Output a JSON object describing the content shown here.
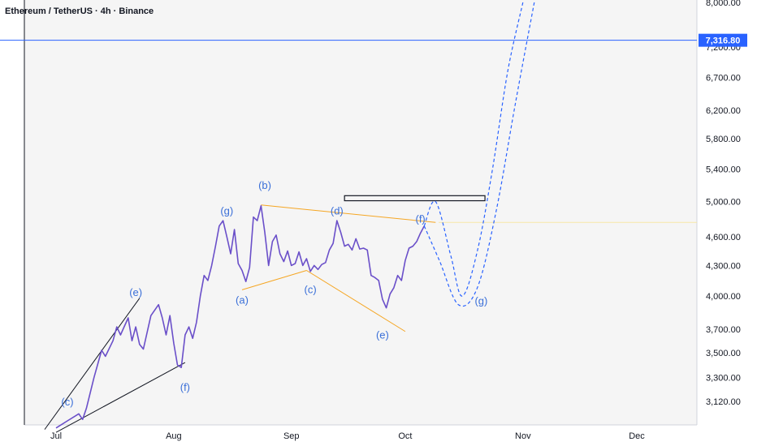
{
  "chart_data": {
    "type": "line",
    "title": "Ethereum / TetherUS · 4h · Binance",
    "xlabel": "",
    "ylabel": "",
    "x_ticks": [
      "Jul",
      "Aug",
      "Sep",
      "Oct",
      "Nov",
      "Dec"
    ],
    "y_ticks": [
      "3,120.00",
      "3,300.00",
      "3,500.00",
      "3,700.00",
      "4,000.00",
      "4,300.00",
      "4,600.00",
      "5,000.00",
      "5,400.00",
      "5,800.00",
      "6,200.00",
      "6,700.00",
      "7,200.00",
      "8,000.00"
    ],
    "y_tick_values": [
      3120,
      3300,
      3500,
      3700,
      4000,
      4300,
      4600,
      5000,
      5400,
      5800,
      6200,
      6700,
      7200,
      8000
    ],
    "ylim": [
      2900,
      8000
    ],
    "y_scale": "log",
    "grid": false,
    "price_line": {
      "value": 7316.8,
      "label": "7,316.80",
      "color": "#2962ff"
    },
    "series": [
      {
        "line_color": "#6a4fc9",
        "points": [
          [
            "2025-07-01",
            2930
          ],
          [
            "2025-07-04",
            2980
          ],
          [
            "2025-07-07",
            3030
          ],
          [
            "2025-07-08",
            2990
          ],
          [
            "2025-07-09",
            3070
          ],
          [
            "2025-07-11",
            3300
          ],
          [
            "2025-07-13",
            3520
          ],
          [
            "2025-07-14",
            3470
          ],
          [
            "2025-07-16",
            3600
          ],
          [
            "2025-07-17",
            3720
          ],
          [
            "2025-07-18",
            3650
          ],
          [
            "2025-07-20",
            3800
          ],
          [
            "2025-07-21",
            3600
          ],
          [
            "2025-07-22",
            3720
          ],
          [
            "2025-07-23",
            3570
          ],
          [
            "2025-07-24",
            3530
          ],
          [
            "2025-07-26",
            3820
          ],
          [
            "2025-07-28",
            3920
          ],
          [
            "2025-07-29",
            3800
          ],
          [
            "2025-07-30",
            3650
          ],
          [
            "2025-07-31",
            3820
          ],
          [
            "2025-08-01",
            3580
          ],
          [
            "2025-08-02",
            3400
          ],
          [
            "2025-08-03",
            3380
          ],
          [
            "2025-08-04",
            3650
          ],
          [
            "2025-08-05",
            3720
          ],
          [
            "2025-08-06",
            3620
          ],
          [
            "2025-08-07",
            3760
          ],
          [
            "2025-08-08",
            4000
          ],
          [
            "2025-08-09",
            4200
          ],
          [
            "2025-08-10",
            4150
          ],
          [
            "2025-08-11",
            4300
          ],
          [
            "2025-08-12",
            4500
          ],
          [
            "2025-08-13",
            4720
          ],
          [
            "2025-08-14",
            4780
          ],
          [
            "2025-08-15",
            4600
          ],
          [
            "2025-08-16",
            4420
          ],
          [
            "2025-08-17",
            4680
          ],
          [
            "2025-08-18",
            4320
          ],
          [
            "2025-08-19",
            4250
          ],
          [
            "2025-08-20",
            4140
          ],
          [
            "2025-08-21",
            4280
          ],
          [
            "2025-08-22",
            4820
          ],
          [
            "2025-08-23",
            4780
          ],
          [
            "2025-08-24",
            4950
          ],
          [
            "2025-08-25",
            4650
          ],
          [
            "2025-08-26",
            4300
          ],
          [
            "2025-08-27",
            4550
          ],
          [
            "2025-08-28",
            4620
          ],
          [
            "2025-08-29",
            4420
          ],
          [
            "2025-08-30",
            4340
          ],
          [
            "2025-08-31",
            4450
          ],
          [
            "2025-09-01",
            4300
          ],
          [
            "2025-09-02",
            4320
          ],
          [
            "2025-09-03",
            4440
          ],
          [
            "2025-09-04",
            4300
          ],
          [
            "2025-09-05",
            4370
          ],
          [
            "2025-09-06",
            4240
          ],
          [
            "2025-09-07",
            4300
          ],
          [
            "2025-09-08",
            4260
          ],
          [
            "2025-09-09",
            4310
          ],
          [
            "2025-09-10",
            4330
          ],
          [
            "2025-09-11",
            4460
          ],
          [
            "2025-09-12",
            4530
          ],
          [
            "2025-09-13",
            4780
          ],
          [
            "2025-09-14",
            4650
          ],
          [
            "2025-09-15",
            4500
          ],
          [
            "2025-09-16",
            4520
          ],
          [
            "2025-09-17",
            4460
          ],
          [
            "2025-09-18",
            4580
          ],
          [
            "2025-09-19",
            4470
          ],
          [
            "2025-09-20",
            4480
          ],
          [
            "2025-09-21",
            4460
          ],
          [
            "2025-09-22",
            4200
          ],
          [
            "2025-09-23",
            4180
          ],
          [
            "2025-09-24",
            4150
          ],
          [
            "2025-09-25",
            3970
          ],
          [
            "2025-09-26",
            3890
          ],
          [
            "2025-09-27",
            4020
          ],
          [
            "2025-09-28",
            4080
          ],
          [
            "2025-09-29",
            4200
          ],
          [
            "2025-09-30",
            4150
          ],
          [
            "2025-10-01",
            4350
          ],
          [
            "2025-10-02",
            4480
          ],
          [
            "2025-10-03",
            4500
          ],
          [
            "2025-10-04",
            4550
          ],
          [
            "2025-10-05",
            4640
          ],
          [
            "2025-10-06",
            4720
          ]
        ]
      }
    ],
    "projection_paths": [
      {
        "style": "dashed",
        "color": "#2962ff",
        "points": [
          [
            "2025-10-06",
            4720
          ],
          [
            "2025-10-09",
            5000
          ],
          [
            "2025-10-13",
            4400
          ],
          [
            "2025-10-16",
            4000
          ],
          [
            "2025-10-20",
            4450
          ],
          [
            "2025-10-24",
            5400
          ],
          [
            "2025-10-28",
            6800
          ],
          [
            "2025-11-01",
            8000
          ]
        ]
      },
      {
        "style": "dashed",
        "color": "#2962ff",
        "points": [
          [
            "2025-10-06",
            4720
          ],
          [
            "2025-10-10",
            4350
          ],
          [
            "2025-10-15",
            3920
          ],
          [
            "2025-10-20",
            4080
          ],
          [
            "2025-10-25",
            4900
          ],
          [
            "2025-10-30",
            6300
          ],
          [
            "2025-11-04",
            8000
          ]
        ]
      }
    ],
    "trend_lines": [
      {
        "color": "#131722",
        "points": [
          [
            "2025-06-28",
            2920
          ],
          [
            "2025-07-23",
            3980
          ]
        ]
      },
      {
        "color": "#131722",
        "points": [
          [
            "2025-07-01",
            2900
          ],
          [
            "2025-08-04",
            3420
          ]
        ]
      },
      {
        "color": "#f5a623",
        "points": [
          [
            "2025-08-24",
            4960
          ],
          [
            "2025-10-09",
            4760
          ]
        ]
      },
      {
        "color": "#f5a623",
        "points": [
          [
            "2025-08-19",
            4060
          ],
          [
            "2025-09-05",
            4250
          ]
        ]
      },
      {
        "color": "#f5a623",
        "points": [
          [
            "2025-09-05",
            4250
          ],
          [
            "2025-10-01",
            3680
          ]
        ]
      }
    ],
    "rectangle": {
      "x_start": "2025-09-15",
      "x_end": "2025-10-22",
      "y_low": 5010,
      "y_high": 5070,
      "color": "#131722"
    },
    "wave_labels": [
      {
        "text": "(c)",
        "x": "2025-07-04",
        "y": 3090
      },
      {
        "text": "(e)",
        "x": "2025-07-22",
        "y": 4000
      },
      {
        "text": "(f)",
        "x": "2025-08-04",
        "y": 3200
      },
      {
        "text": "(g)",
        "x": "2025-08-15",
        "y": 4850
      },
      {
        "text": "(a)",
        "x": "2025-08-19",
        "y": 3930
      },
      {
        "text": "(b)",
        "x": "2025-08-25",
        "y": 5150
      },
      {
        "text": "(c)",
        "x": "2025-09-06",
        "y": 4030
      },
      {
        "text": "(d)",
        "x": "2025-09-13",
        "y": 4850
      },
      {
        "text": "(e)",
        "x": "2025-09-25",
        "y": 3620
      },
      {
        "text": "(f)",
        "x": "2025-10-05",
        "y": 4760
      },
      {
        "text": "(g)",
        "x": "2025-10-21",
        "y": 3920
      }
    ]
  }
}
